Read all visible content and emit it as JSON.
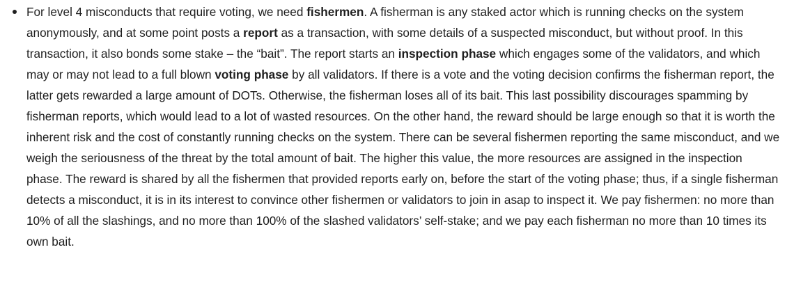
{
  "paragraph": {
    "t1": "For level 4 misconducts that require voting, we need ",
    "b1": "fishermen",
    "t2": ". A fisherman is any staked actor which is running checks on the system anonymously, and at some point posts a ",
    "b2": "report",
    "t3": " as a transaction, with some details of a suspected misconduct, but without proof. In this transaction, it also bonds some stake – the “bait”. The report starts an ",
    "b3": "inspection phase",
    "t4": " which engages some of the validators, and which may or may not lead to a full blown ",
    "b4": "voting phase",
    "t5": " by all validators. If there is a vote and the voting decision confirms the fisherman report, the latter gets rewarded a large amount of DOTs. Otherwise, the fisherman loses all of its bait. This last possibility discourages spamming by fisherman reports, which would lead to a lot of wasted resources. On the other hand, the reward should be large enough so that it is worth the inherent risk and the cost of constantly running checks on the system. There can be several fishermen reporting the same misconduct, and we weigh the seriousness of the threat by the total amount of bait. The higher this value, the more resources are assigned in the inspection phase. The reward is shared by all the fishermen that provided reports early on, before the start of the voting phase; thus, if a single fisherman detects a misconduct, it is in its interest to convince other fishermen or validators to join in asap to inspect it. We pay fishermen: no more than 10% of all the slashings, and no more than 100% of the slashed validators’ self-stake; and we pay each fisherman no more than 10 times its own bait."
  }
}
